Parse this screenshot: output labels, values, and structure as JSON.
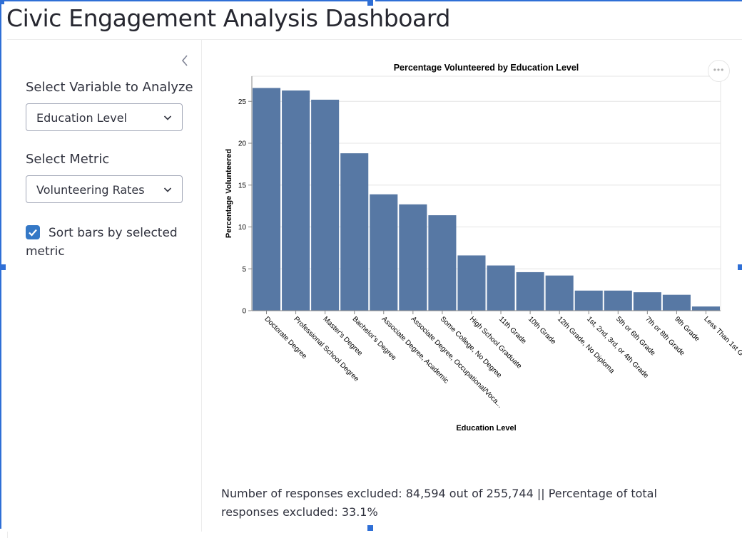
{
  "page": {
    "title": "Civic Engagement Analysis Dashboard"
  },
  "sidebar": {
    "collapse_icon": "chevron-left-icon",
    "variable": {
      "label": "Select Variable to Analyze",
      "value": "Education Level"
    },
    "metric": {
      "label": "Select Metric",
      "value": "Volunteering Rates"
    },
    "sort": {
      "label": "Sort bars by selected metric",
      "checked": true
    }
  },
  "chart_menu_icon": "ellipsis-icon",
  "chart_data": {
    "type": "bar",
    "title": "Percentage Volunteered by Education Level",
    "xlabel": "Education Level",
    "ylabel": "Percentage Volunteered",
    "ylim": [
      0,
      28
    ],
    "yticks": [
      0,
      5,
      10,
      15,
      20,
      25
    ],
    "grid": true,
    "color": "#5778a4",
    "categories": [
      "Doctorate Degree",
      "Professional School Degree",
      "Master's Degree",
      "Bachelor's Degree",
      "Associate Degree, Academic",
      "Associate Degree, Occupational/Voca...",
      "Some College, No Degree",
      "High School Graduate",
      "11th Grade",
      "10th Grade",
      "12th Grade, No Diploma",
      "1st, 2nd, 3rd, or 4th Grade",
      "5th or 6th Grade",
      "7th or 8th Grade",
      "9th Grade",
      "Less Than 1st G"
    ],
    "values": [
      26.6,
      26.3,
      25.2,
      18.8,
      13.9,
      12.7,
      11.4,
      6.6,
      5.4,
      4.6,
      4.2,
      2.4,
      2.4,
      2.2,
      1.9,
      0.5
    ]
  },
  "footer": {
    "text": "Number of responses excluded: 84,594 out of 255,744 || Percentage of total responses excluded: 33.1%"
  }
}
